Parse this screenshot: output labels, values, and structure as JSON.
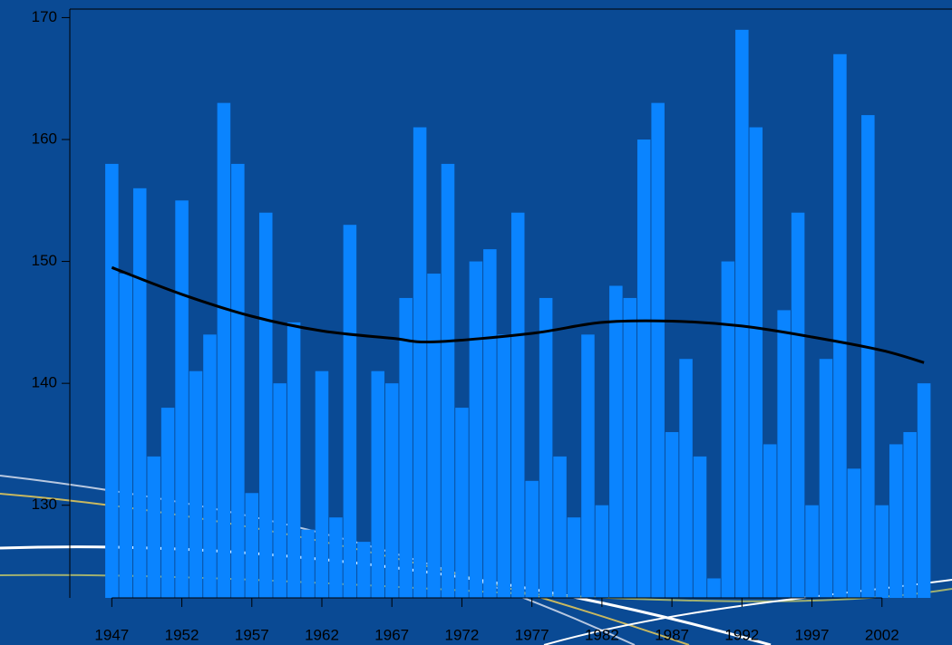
{
  "chart_data": {
    "type": "bar",
    "x": [
      1947,
      1948,
      1949,
      1950,
      1951,
      1952,
      1953,
      1954,
      1955,
      1956,
      1957,
      1958,
      1959,
      1960,
      1961,
      1962,
      1963,
      1964,
      1965,
      1966,
      1967,
      1968,
      1969,
      1970,
      1971,
      1972,
      1973,
      1974,
      1975,
      1976,
      1977,
      1978,
      1979,
      1980,
      1981,
      1982,
      1983,
      1984,
      1985,
      1986,
      1987,
      1988,
      1989,
      1990,
      1991,
      1992,
      1993,
      1994,
      1995,
      1996,
      1997,
      1998,
      1999,
      2000,
      2001,
      2002,
      2003,
      2004,
      2005
    ],
    "values": [
      158,
      149,
      156,
      134,
      138,
      155,
      141,
      144,
      163,
      158,
      131,
      154,
      140,
      145,
      128,
      141,
      129,
      153,
      127,
      141,
      140,
      147,
      161,
      149,
      158,
      138,
      150,
      151,
      144,
      154,
      132,
      147,
      134,
      129,
      144,
      130,
      148,
      147,
      160,
      163,
      136,
      142,
      134,
      124,
      150,
      169,
      161,
      135,
      146,
      154,
      130,
      142,
      167,
      133,
      162,
      130,
      135,
      136,
      140
    ],
    "color": "#0a84ff",
    "trend": {
      "x": [
        1947,
        1952,
        1957,
        1962,
        1967,
        1970,
        1977,
        1982,
        1987,
        1992,
        1997,
        2002,
        2005
      ],
      "values": [
        149.5,
        147.3,
        145.5,
        144.3,
        143.7,
        143.4,
        144.1,
        145,
        145.1,
        144.7,
        143.8,
        142.7,
        141.7
      ],
      "color": "#000000"
    },
    "xlim": [
      1944,
      2007
    ],
    "ylim": [
      122.4,
      170.7
    ],
    "xticks": [
      1947,
      1952,
      1957,
      1962,
      1967,
      1972,
      1977,
      1982,
      1987,
      1992,
      1997,
      2002
    ],
    "yticks": [
      130,
      140,
      150,
      160,
      170
    ]
  }
}
